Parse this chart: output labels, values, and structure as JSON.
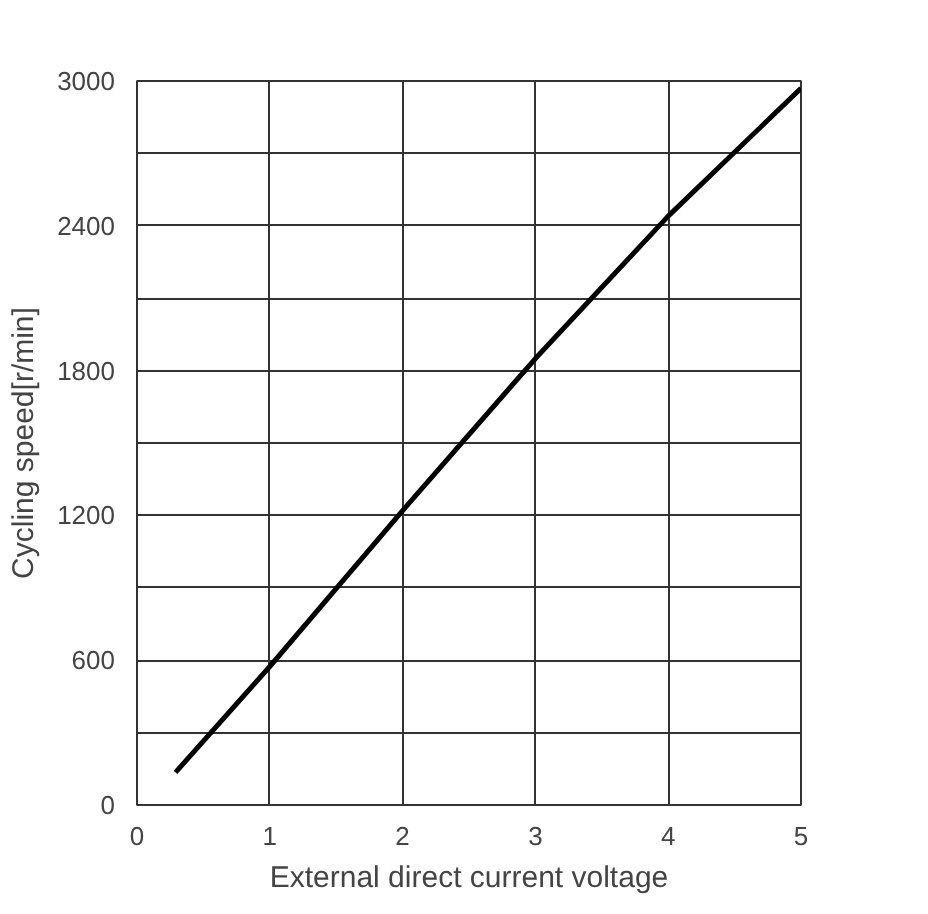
{
  "chart_data": {
    "type": "line",
    "xlabel": "External direct current voltage",
    "ylabel": "Cycling speed[r/min]",
    "x": [
      0.29,
      1,
      2,
      3,
      4,
      5
    ],
    "series": [
      {
        "color": "#000000",
        "values": [
          135,
          574,
          1220,
          1850,
          2440,
          2970
        ]
      }
    ],
    "xlim": [
      0,
      5
    ],
    "xticks": [
      0,
      1,
      2,
      3,
      4,
      5
    ],
    "ylim": [
      0,
      3000
    ],
    "yticks": [
      0,
      {
        "value": 300,
        "label": null
      },
      600,
      {
        "value": 900,
        "label": null
      },
      1200,
      {
        "value": 1500,
        "label": null
      },
      1800,
      {
        "value": 2100,
        "label": null
      },
      2400,
      {
        "value": 2700,
        "label": null
      },
      3000
    ],
    "grid": true,
    "marker": "none",
    "line_style": "solid"
  }
}
